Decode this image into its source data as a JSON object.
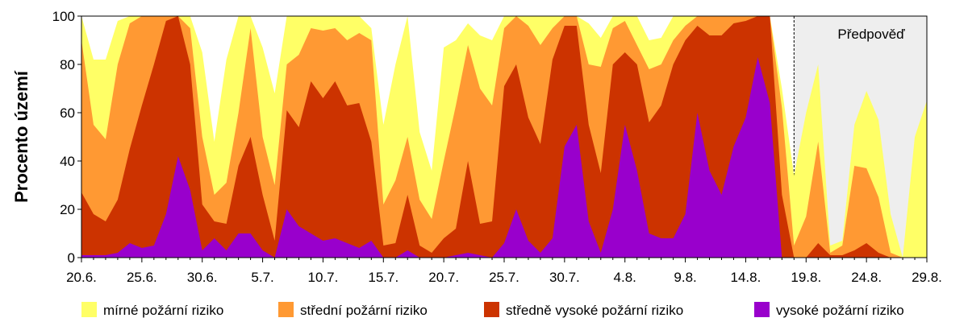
{
  "chart_data": {
    "type": "area",
    "stacked": true,
    "x_start_date": "20.6.",
    "x_tick_labels": [
      "20.6.",
      "25.6.",
      "30.6.",
      "5.7.",
      "10.7.",
      "15.7.",
      "20.7.",
      "25.7.",
      "30.7.",
      "4.8.",
      "9.8.",
      "14.8.",
      "19.8.",
      "24.8.",
      "29.8."
    ],
    "ylabel": "Procento území",
    "ylim": [
      0,
      100
    ],
    "y_ticks": [
      0,
      20,
      40,
      60,
      80,
      100
    ],
    "forecast": {
      "label": "Předpověď",
      "start_day": 59,
      "end_day": 70
    },
    "legend": {
      "placement": "bottom"
    },
    "series": [
      {
        "name": "vysoké požární riziko",
        "color": "#9900cc",
        "values": [
          1,
          1,
          1,
          2,
          6,
          4,
          5,
          18,
          42,
          28,
          3,
          8,
          3,
          10,
          10,
          3,
          0,
          20,
          13,
          10,
          7,
          8,
          6,
          4,
          7,
          0,
          0,
          3,
          0,
          0,
          0,
          1,
          2,
          1,
          0,
          6,
          20,
          7,
          2,
          8,
          46,
          55,
          15,
          2,
          20,
          55,
          36,
          10,
          8,
          8,
          18,
          60,
          36,
          26,
          46,
          58,
          83,
          64,
          0,
          0,
          0,
          0,
          0,
          0,
          0,
          0,
          0,
          0,
          0,
          0,
          0
        ]
      },
      {
        "name": "středně vysoké požární riziko",
        "color": "#cc3300",
        "values": [
          27,
          18,
          15,
          24,
          45,
          63,
          80,
          98,
          100,
          80,
          22,
          15,
          14,
          38,
          50,
          26,
          7,
          61,
          54,
          73,
          66,
          73,
          63,
          64,
          48,
          5,
          6,
          26,
          5,
          2,
          8,
          12,
          40,
          14,
          15,
          71,
          80,
          58,
          47,
          82,
          96,
          96,
          55,
          35,
          80,
          85,
          80,
          56,
          63,
          80,
          90,
          96,
          92,
          92,
          97,
          98,
          100,
          100,
          26,
          0,
          0,
          6,
          1,
          1,
          3,
          6,
          2,
          0,
          0,
          0,
          0
        ]
      },
      {
        "name": "střední požární riziko",
        "color": "#ff9933",
        "values": [
          90,
          55,
          49,
          80,
          97,
          100,
          100,
          100,
          100,
          95,
          50,
          26,
          31,
          60,
          95,
          50,
          30,
          80,
          84,
          95,
          94,
          95,
          90,
          93,
          90,
          22,
          32,
          50,
          24,
          16,
          40,
          63,
          88,
          70,
          63,
          95,
          100,
          96,
          88,
          95,
          100,
          100,
          80,
          79,
          95,
          98,
          88,
          78,
          80,
          90,
          96,
          100,
          100,
          100,
          100,
          100,
          100,
          100,
          62,
          5,
          17,
          48,
          2,
          5,
          38,
          37,
          25,
          2,
          0,
          0,
          0
        ]
      },
      {
        "name": "mírné požární riziko",
        "color": "#ffff66",
        "values": [
          100,
          82,
          82,
          98,
          100,
          100,
          100,
          100,
          100,
          100,
          85,
          48,
          82,
          100,
          100,
          87,
          68,
          100,
          100,
          100,
          100,
          100,
          100,
          100,
          95,
          55,
          80,
          100,
          52,
          36,
          87,
          90,
          97,
          92,
          90,
          100,
          100,
          100,
          100,
          100,
          100,
          100,
          97,
          91,
          100,
          100,
          100,
          90,
          91,
          100,
          100,
          100,
          100,
          100,
          100,
          100,
          100,
          100,
          70,
          34,
          60,
          80,
          5,
          7,
          55,
          69,
          57,
          18,
          0,
          50,
          65
        ]
      }
    ]
  }
}
